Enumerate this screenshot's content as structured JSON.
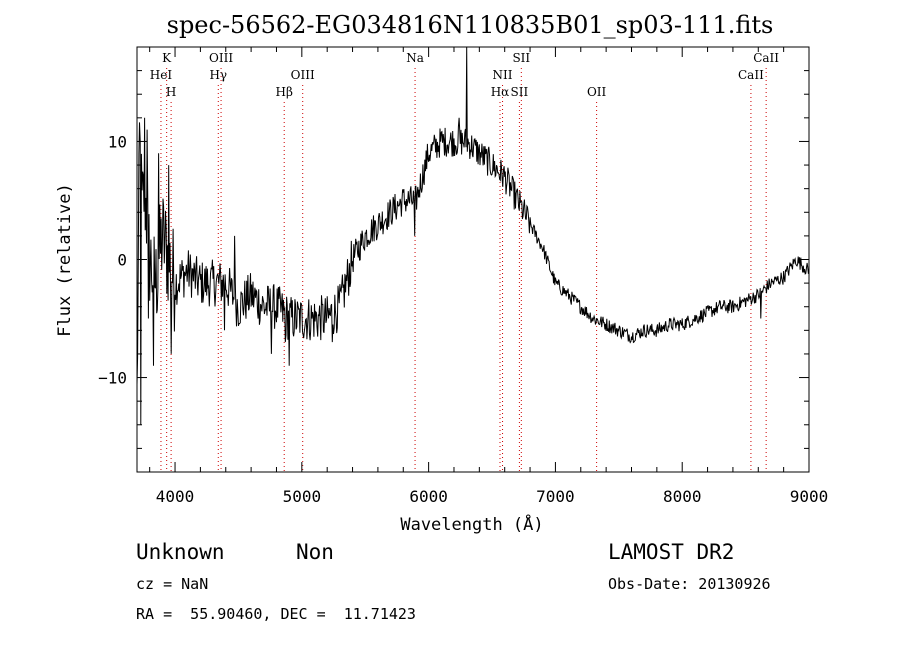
{
  "chart_data": {
    "type": "line",
    "title": "spec-56562-EG034816N110835B01_sp03-111.fits",
    "xlabel": "Wavelength (Å)",
    "ylabel": "Flux (relative)",
    "xlim": [
      3700,
      9000
    ],
    "ylim": [
      -18,
      18
    ],
    "xticks": [
      4000,
      5000,
      6000,
      7000,
      8000,
      9000
    ],
    "yticks": [
      -10,
      0,
      10
    ],
    "grid": false,
    "line_color": "#000000",
    "marker_color": "#cc0000",
    "anchors": [
      [
        3700,
        -12
      ],
      [
        3720,
        10
      ],
      [
        3740,
        4
      ],
      [
        3760,
        6
      ],
      [
        3800,
        0
      ],
      [
        3850,
        -2
      ],
      [
        3900,
        2
      ],
      [
        3950,
        0
      ],
      [
        4000,
        -2
      ],
      [
        4100,
        -1
      ],
      [
        4200,
        -2
      ],
      [
        4300,
        -2
      ],
      [
        4400,
        -2
      ],
      [
        4500,
        -4
      ],
      [
        4600,
        -3
      ],
      [
        4700,
        -4
      ],
      [
        4800,
        -4
      ],
      [
        4900,
        -5
      ],
      [
        5000,
        -5
      ],
      [
        5100,
        -5
      ],
      [
        5200,
        -5
      ],
      [
        5300,
        -4
      ],
      [
        5350,
        -2
      ],
      [
        5400,
        0
      ],
      [
        5500,
        2
      ],
      [
        5600,
        3
      ],
      [
        5700,
        4
      ],
      [
        5800,
        5
      ],
      [
        5900,
        5
      ],
      [
        5950,
        7
      ],
      [
        6000,
        9
      ],
      [
        6100,
        10
      ],
      [
        6200,
        10
      ],
      [
        6300,
        10
      ],
      [
        6400,
        9
      ],
      [
        6500,
        8
      ],
      [
        6600,
        7
      ],
      [
        6700,
        5
      ],
      [
        6800,
        3
      ],
      [
        6900,
        1
      ],
      [
        7000,
        -2
      ],
      [
        7100,
        -3
      ],
      [
        7200,
        -4
      ],
      [
        7300,
        -5
      ],
      [
        7400,
        -5.5
      ],
      [
        7500,
        -6
      ],
      [
        7600,
        -6.5
      ],
      [
        7700,
        -6
      ],
      [
        7800,
        -6
      ],
      [
        7900,
        -5.5
      ],
      [
        8000,
        -5.5
      ],
      [
        8100,
        -5
      ],
      [
        8200,
        -4.5
      ],
      [
        8300,
        -4
      ],
      [
        8400,
        -4
      ],
      [
        8500,
        -3.5
      ],
      [
        8600,
        -3
      ],
      [
        8700,
        -2
      ],
      [
        8800,
        -1.5
      ],
      [
        8900,
        0
      ],
      [
        9000,
        -1
      ]
    ],
    "spikes": [
      [
        3730,
        -14
      ],
      [
        3760,
        12
      ],
      [
        3780,
        11
      ],
      [
        3790,
        -5
      ],
      [
        3830,
        -9
      ],
      [
        3870,
        9
      ],
      [
        3950,
        8
      ],
      [
        3970,
        -8
      ],
      [
        4390,
        -6
      ],
      [
        4470,
        2
      ],
      [
        4760,
        -8
      ],
      [
        4870,
        -7
      ],
      [
        4900,
        -9
      ],
      [
        5240,
        -7
      ],
      [
        5890,
        2
      ],
      [
        6240,
        12
      ],
      [
        6300,
        18
      ],
      [
        8620,
        -5
      ]
    ],
    "lines": [
      {
        "label": "K",
        "wavelength": 3934,
        "row": 1
      },
      {
        "label": "HeI",
        "wavelength": 3889,
        "row": 2
      },
      {
        "label": "H",
        "wavelength": 3969,
        "row": 3
      },
      {
        "label": "OIII",
        "wavelength": 4363,
        "row": 1
      },
      {
        "label": "Hγ",
        "wavelength": 4341,
        "row": 2
      },
      {
        "label": "OIII",
        "wavelength": 5007,
        "row": 2
      },
      {
        "label": "Hβ",
        "wavelength": 4861,
        "row": 3
      },
      {
        "label": "Na",
        "wavelength": 5893,
        "row": 1
      },
      {
        "label": "SII",
        "wavelength": 6731,
        "row": 1
      },
      {
        "label": "NII",
        "wavelength": 6583,
        "row": 2
      },
      {
        "label": "Hα",
        "wavelength": 6563,
        "row": 3
      },
      {
        "label": "SII",
        "wavelength": 6716,
        "row": 3
      },
      {
        "label": "OII",
        "wavelength": 7325,
        "row": 3
      },
      {
        "label": "CaII",
        "wavelength": 8662,
        "row": 1
      },
      {
        "label": "CaII",
        "wavelength": 8542,
        "row": 2
      }
    ]
  },
  "info": {
    "class_label": "Unknown",
    "subclass_label": "Non",
    "survey": "LAMOST DR2",
    "cz": "cz = NaN",
    "obs_date": "Obs-Date: 20130926",
    "coords": "RA =  55.90460, DEC =  11.71423"
  }
}
